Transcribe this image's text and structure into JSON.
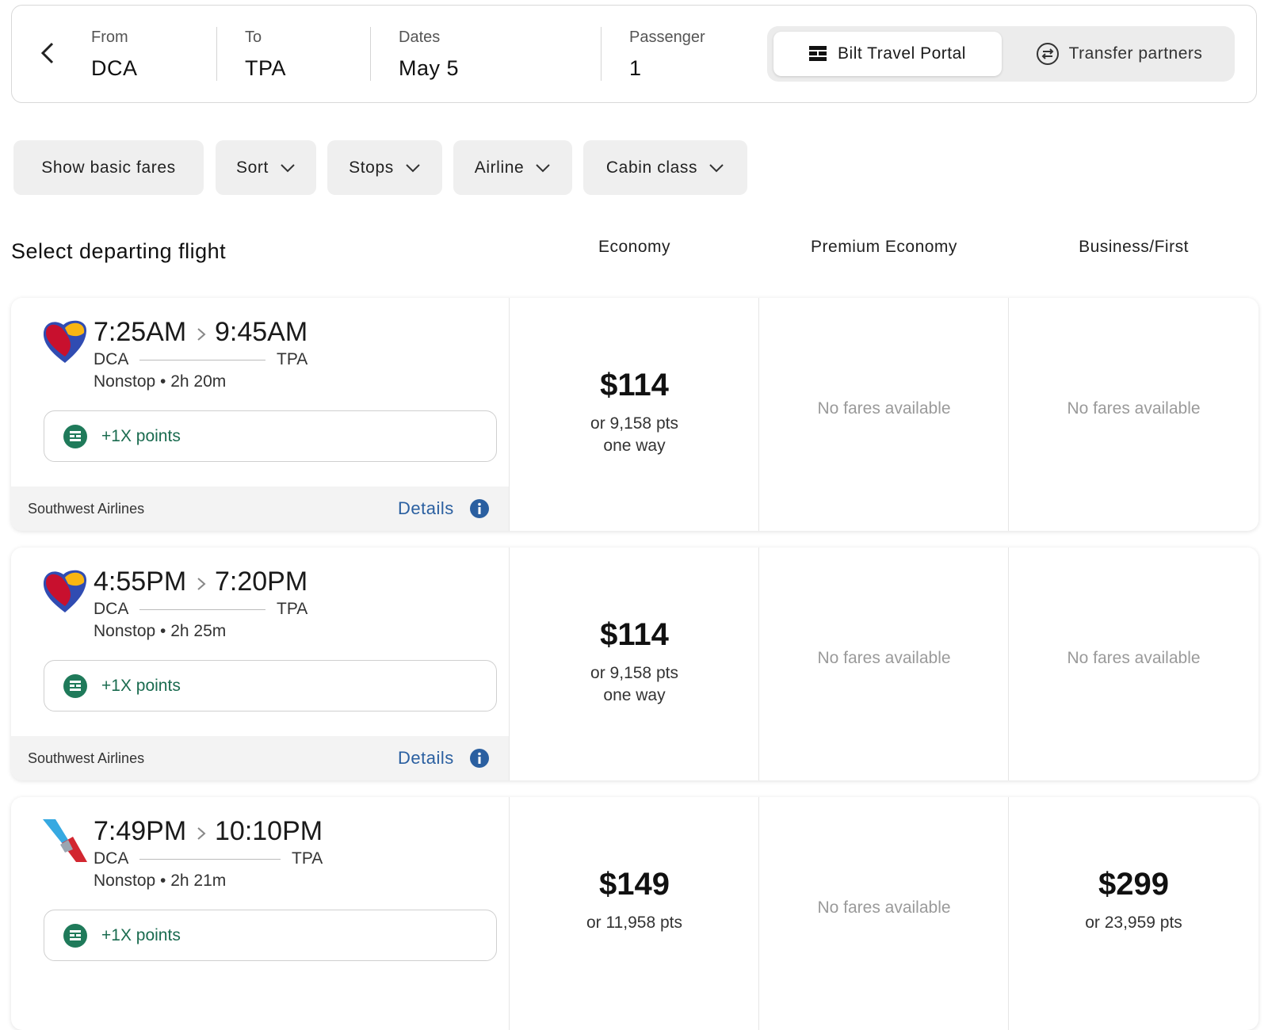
{
  "search": {
    "from_label": "From",
    "from": "DCA",
    "to_label": "To",
    "to": "TPA",
    "dates_label": "Dates",
    "dates": "May 5",
    "passenger_label": "Passenger",
    "passenger": "1",
    "tabs": [
      "Bilt Travel Portal",
      "Transfer partners"
    ]
  },
  "filters": [
    "Show basic fares",
    "Sort",
    "Stops",
    "Airline",
    "Cabin class"
  ],
  "results": {
    "heading": "Select departing flight",
    "columns": [
      "Economy",
      "Premium Economy",
      "Business/First"
    ],
    "flights": [
      {
        "depart": "7:25AM",
        "arrive": "9:45AM",
        "origin": "DCA",
        "destination": "TPA",
        "summary": "Nonstop • 2h 20m",
        "points": "+1X points",
        "airline": "Southwest Airlines",
        "details": "Details",
        "fares": [
          {
            "price": "$114",
            "points": "or 9,158 pts",
            "note": "one way"
          },
          {
            "text": "No fares available"
          },
          {
            "text": "No fares available"
          }
        ]
      },
      {
        "depart": "4:55PM",
        "arrive": "7:20PM",
        "origin": "DCA",
        "destination": "TPA",
        "summary": "Nonstop • 2h 25m",
        "points": "+1X points",
        "airline": "Southwest Airlines",
        "details": "Details",
        "fares": [
          {
            "price": "$114",
            "points": "or 9,158 pts",
            "note": "one way"
          },
          {
            "text": "No fares available"
          },
          {
            "text": "No fares available"
          }
        ]
      },
      {
        "depart": "7:49PM",
        "arrive": "10:10PM",
        "origin": "DCA",
        "destination": "TPA",
        "summary": "Nonstop • 2h 21m",
        "points": "+1X points",
        "fares": [
          {
            "price": "$149",
            "points": "or 11,958 pts"
          },
          {
            "text": "No fares available"
          },
          {
            "price": "$299",
            "points": "or 23,959 pts"
          }
        ]
      }
    ]
  }
}
